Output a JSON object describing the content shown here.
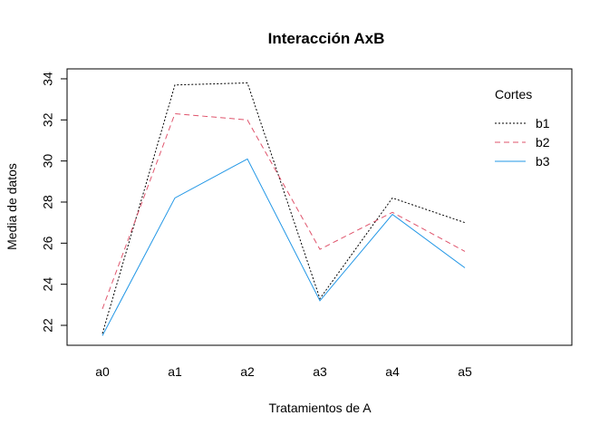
{
  "chart_data": {
    "type": "line",
    "title": "Interacción AxB",
    "xlabel": "Tratamientos de A",
    "ylabel": "Media de datos",
    "categories": [
      "a0",
      "a1",
      "a2",
      "a3",
      "a4",
      "a5"
    ],
    "yticks": [
      22,
      24,
      26,
      28,
      30,
      32,
      34
    ],
    "ylim": [
      21.05,
      34.2
    ],
    "grid": false,
    "legend_title": "Cortes",
    "legend_position": "top-right",
    "series": [
      {
        "name": "b1",
        "values": [
          21.6,
          33.7,
          33.8,
          23.3,
          28.2,
          27.0
        ],
        "color": "#000000",
        "dash": "dotted"
      },
      {
        "name": "b2",
        "values": [
          22.8,
          32.3,
          32.0,
          25.7,
          27.5,
          25.6
        ],
        "color": "#DF536B",
        "dash": "dashed"
      },
      {
        "name": "b3",
        "values": [
          21.5,
          28.2,
          30.1,
          23.2,
          27.4,
          24.8
        ],
        "color": "#2297E6",
        "dash": "solid"
      }
    ]
  }
}
